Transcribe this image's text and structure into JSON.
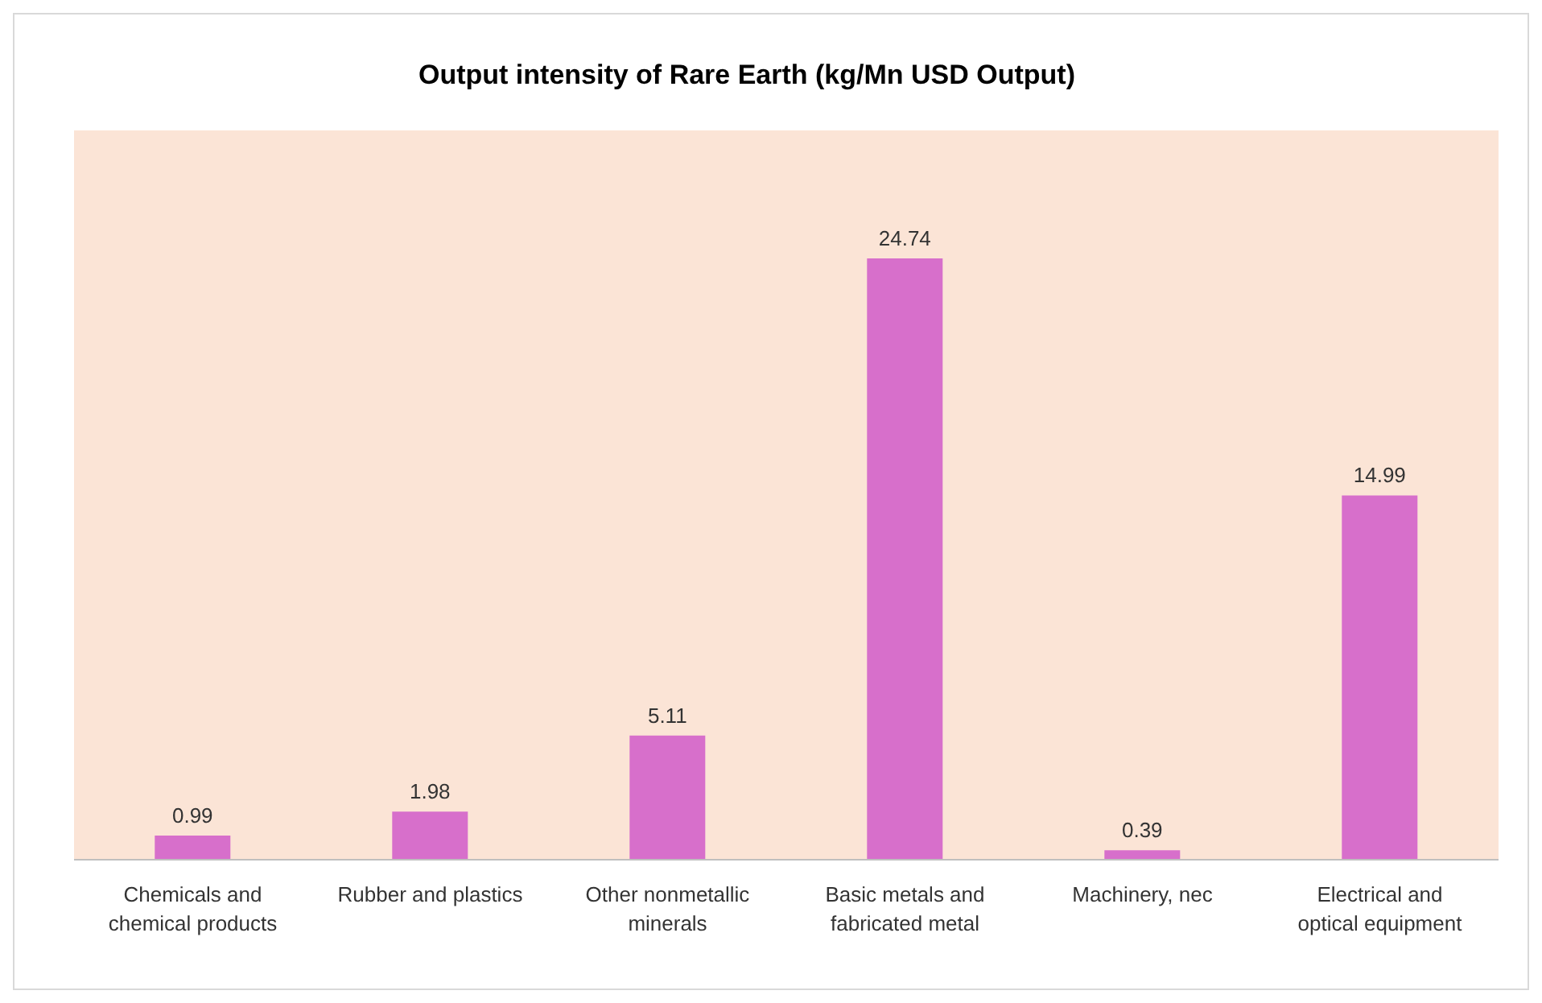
{
  "chart_data": {
    "type": "bar",
    "title": "Output intensity of Rare Earth (kg/Mn USD Output)",
    "categories": [
      "Chemicals and chemical products",
      "Rubber and plastics",
      "Other nonmetallic minerals",
      "Basic metals and fabricated metal",
      "Machinery, nec",
      "Electrical and optical equipment"
    ],
    "values": [
      0.99,
      1.98,
      5.11,
      24.74,
      0.39,
      14.99
    ],
    "color": "#d76fcb",
    "data_labels": true,
    "grid": false
  }
}
